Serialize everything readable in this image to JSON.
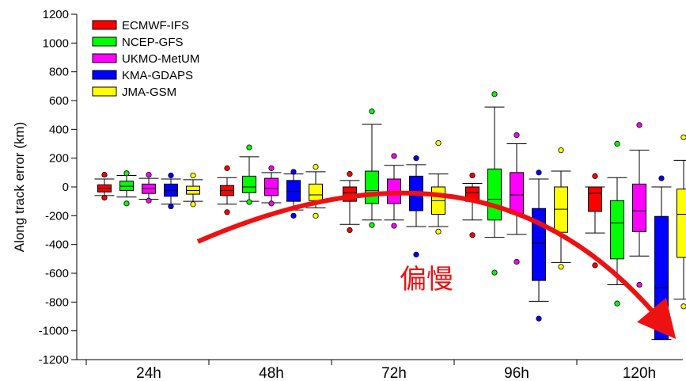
{
  "chart_data": {
    "type": "box",
    "title": "",
    "xlabel": "",
    "ylabel": "Along track error (km)",
    "ylim": [
      -1200,
      1200
    ],
    "yticks": [
      1200,
      1000,
      800,
      600,
      400,
      200,
      0,
      -200,
      -400,
      -600,
      -800,
      -1000,
      -1200
    ],
    "grid": false,
    "legend_position": "top-left",
    "categories": [
      "24h",
      "48h",
      "72h",
      "96h",
      "120h"
    ],
    "series": [
      {
        "name": "ECMWF-IFS",
        "color": "#ff0000",
        "boxes": [
          {
            "whisker_low": -60,
            "q1": -35,
            "median": -10,
            "q3": 15,
            "whisker_high": 55,
            "outliers": [
              85,
              -75
            ]
          },
          {
            "whisker_low": -120,
            "q1": -60,
            "median": -25,
            "q3": 10,
            "whisker_high": 65,
            "outliers": [
              130,
              -175
            ]
          },
          {
            "whisker_low": -260,
            "q1": -100,
            "median": -40,
            "q3": 0,
            "whisker_high": 45,
            "outliers": [
              90,
              -300
            ]
          },
          {
            "whisker_low": -230,
            "q1": -100,
            "median": -40,
            "q3": 0,
            "whisker_high": 25,
            "outliers": [
              80,
              -335
            ]
          },
          {
            "whisker_low": -320,
            "q1": -170,
            "median": -45,
            "q3": 0,
            "whisker_high": 0,
            "outliers": [
              75,
              -545
            ]
          }
        ]
      },
      {
        "name": "NCEP-GFS",
        "color": "#00ff00",
        "boxes": [
          {
            "whisker_low": -70,
            "q1": -25,
            "median": 5,
            "q3": 40,
            "whisker_high": 80,
            "outliers": [
              95,
              -115
            ]
          },
          {
            "whisker_low": -100,
            "q1": -40,
            "median": 0,
            "q3": 75,
            "whisker_high": 210,
            "outliers": [
              275,
              -105
            ]
          },
          {
            "whisker_low": -230,
            "q1": -115,
            "median": -25,
            "q3": 110,
            "whisker_high": 435,
            "outliers": [
              525,
              -265
            ]
          },
          {
            "whisker_low": -350,
            "q1": -230,
            "median": -85,
            "q3": 125,
            "whisker_high": 555,
            "outliers": [
              645,
              -595
            ]
          },
          {
            "whisker_low": -680,
            "q1": -500,
            "median": -250,
            "q3": -95,
            "whisker_high": 65,
            "outliers": [
              300,
              -810
            ]
          }
        ]
      },
      {
        "name": "UKMO-MetUM",
        "color": "#ff00ff",
        "boxes": [
          {
            "whisker_low": -85,
            "q1": -45,
            "median": -10,
            "q3": 20,
            "whisker_high": 60,
            "outliers": [
              85,
              -95
            ]
          },
          {
            "whisker_low": -110,
            "q1": -60,
            "median": -10,
            "q3": 60,
            "whisker_high": 100,
            "outliers": [
              130,
              -115
            ]
          },
          {
            "whisker_low": -230,
            "q1": -115,
            "median": -45,
            "q3": 55,
            "whisker_high": 150,
            "outliers": [
              215,
              -270
            ]
          },
          {
            "whisker_low": -330,
            "q1": -185,
            "median": -55,
            "q3": 100,
            "whisker_high": 300,
            "outliers": [
              360,
              -520
            ]
          },
          {
            "whisker_low": -480,
            "q1": -310,
            "median": -165,
            "q3": 20,
            "whisker_high": 255,
            "outliers": [
              430,
              -680
            ]
          }
        ]
      },
      {
        "name": "KMA-GDAPS",
        "color": "#0000ff",
        "boxes": [
          {
            "whisker_low": -120,
            "q1": -65,
            "median": -25,
            "q3": 20,
            "whisker_high": 55,
            "outliers": [
              80,
              -135
            ]
          },
          {
            "whisker_low": -160,
            "q1": -100,
            "median": -30,
            "q3": 45,
            "whisker_high": 90,
            "outliers": [
              105,
              -200
            ]
          },
          {
            "whisker_low": -275,
            "q1": -165,
            "median": -40,
            "q3": 75,
            "whisker_high": 155,
            "outliers": [
              200,
              -470
            ]
          },
          {
            "whisker_low": -795,
            "q1": -650,
            "median": -390,
            "q3": -150,
            "whisker_high": 55,
            "outliers": [
              100,
              -915
            ]
          },
          {
            "whisker_low": -1060,
            "q1": -1060,
            "median": -700,
            "q3": -205,
            "whisker_high": 0,
            "outliers": [
              60
            ]
          }
        ]
      },
      {
        "name": "JMA-GSM",
        "color": "#ffff00",
        "boxes": [
          {
            "whisker_low": -100,
            "q1": -50,
            "median": -25,
            "q3": 5,
            "whisker_high": 50,
            "outliers": [
              80,
              -120
            ]
          },
          {
            "whisker_low": -145,
            "q1": -95,
            "median": -55,
            "q3": 20,
            "whisker_high": 105,
            "outliers": [
              140,
              -200
            ]
          },
          {
            "whisker_low": -275,
            "q1": -190,
            "median": -95,
            "q3": 0,
            "whisker_high": 90,
            "outliers": [
              305,
              -310
            ]
          },
          {
            "whisker_low": -525,
            "q1": -315,
            "median": -155,
            "q3": 0,
            "whisker_high": 110,
            "outliers": [
              255,
              -555
            ]
          },
          {
            "whisker_low": -780,
            "q1": -490,
            "median": -190,
            "q3": -15,
            "whisker_high": 185,
            "outliers": [
              345,
              -830
            ]
          }
        ]
      }
    ],
    "annotations": [
      {
        "text": "偏慢",
        "color": "#ee1111",
        "type": "curved-arrow"
      }
    ]
  }
}
